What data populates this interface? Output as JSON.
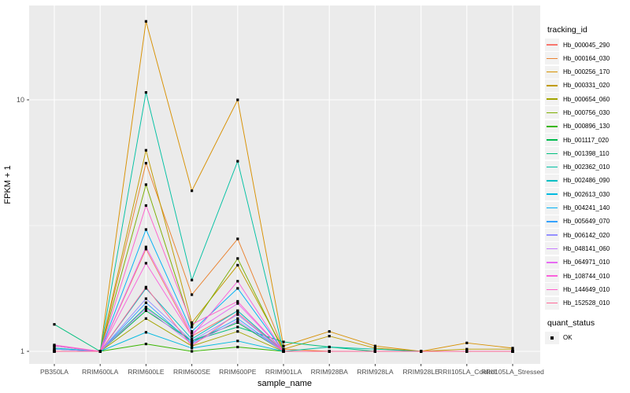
{
  "figure": {
    "panel_background": "#EBEBEB",
    "grid_color": "#FFFFFF",
    "axis_text_color": "#4D4D4D",
    "axis_title_color": "#000000",
    "tick_color": "#333333",
    "point_color": "#000000",
    "legend_key_background": "#F2F2F2"
  },
  "chart_data": {
    "type": "line",
    "title": "",
    "xlabel": "sample_name",
    "ylabel": "FPKM + 1",
    "y_scale": "log10",
    "y_ticks": [
      1,
      10
    ],
    "y_minor_ticks": [
      3.1623
    ],
    "ylim": [
      0.9,
      23.5
    ],
    "grid": true,
    "legend_position": "right",
    "legend_title": "tracking_id",
    "legend2_title": "quant_status",
    "legend2_items": [
      {
        "label": "OK",
        "shape": "black-square"
      }
    ],
    "point_shape": "square",
    "categories": [
      "PB350LA",
      "RRIM600LA",
      "RRIM600LE",
      "RRIM600SE",
      "RRIM600PE",
      "RRIM901LA",
      "RRIM928BA",
      "RRIM928LA",
      "RRIM928LE",
      "RRII105LA_Control",
      "RRII105LA_Stressed"
    ],
    "series": [
      {
        "name": "Hb_000045_290",
        "color": "#F8766D",
        "values": [
          1.0,
          1.0,
          2.55,
          1.15,
          1.45,
          1.0,
          1.0,
          1.0,
          1.0,
          1.0,
          1.0
        ]
      },
      {
        "name": "Hb_000164_030",
        "color": "#EA8331",
        "values": [
          1.0,
          1.0,
          5.6,
          1.68,
          2.8,
          1.02,
          1.0,
          1.0,
          1.0,
          1.0,
          1.0
        ]
      },
      {
        "name": "Hb_000256_170",
        "color": "#D89000",
        "values": [
          1.0,
          1.0,
          20.5,
          4.35,
          10.0,
          1.05,
          1.2,
          1.05,
          1.0,
          1.08,
          1.03
        ]
      },
      {
        "name": "Hb_000331_020",
        "color": "#C09B00",
        "values": [
          1.0,
          1.0,
          6.3,
          1.3,
          2.2,
          1.02,
          1.15,
          1.03,
          1.0,
          1.02,
          1.02
        ]
      },
      {
        "name": "Hb_000654_060",
        "color": "#A3A500",
        "values": [
          1.0,
          1.0,
          1.35,
          1.05,
          1.2,
          1.0,
          1.0,
          1.0,
          1.0,
          1.0,
          1.0
        ]
      },
      {
        "name": "Hb_000756_030",
        "color": "#7CAE00",
        "values": [
          1.0,
          1.0,
          4.6,
          1.25,
          2.34,
          1.0,
          1.0,
          1.0,
          1.0,
          1.0,
          1.0
        ]
      },
      {
        "name": "Hb_000896_130",
        "color": "#39B600",
        "values": [
          1.0,
          1.0,
          1.07,
          1.0,
          1.04,
          1.0,
          1.0,
          1.0,
          1.0,
          1.0,
          1.0
        ]
      },
      {
        "name": "Hb_001117_020",
        "color": "#00BB4E",
        "values": [
          1.05,
          1.0,
          1.45,
          1.1,
          1.3,
          1.0,
          1.0,
          1.0,
          1.0,
          1.0,
          1.0
        ]
      },
      {
        "name": "Hb_001398_110",
        "color": "#00BF7D",
        "values": [
          1.28,
          1.0,
          1.5,
          1.1,
          1.25,
          1.09,
          1.04,
          1.0,
          1.0,
          1.0,
          1.0
        ]
      },
      {
        "name": "Hb_002362_010",
        "color": "#00C1A3",
        "values": [
          1.02,
          1.0,
          10.7,
          1.92,
          5.7,
          1.0,
          1.04,
          1.02,
          1.0,
          1.0,
          1.0
        ]
      },
      {
        "name": "Hb_002486_090",
        "color": "#00BFC4",
        "values": [
          1.03,
          1.0,
          1.78,
          1.12,
          1.45,
          1.0,
          1.0,
          1.0,
          1.0,
          1.0,
          1.0
        ]
      },
      {
        "name": "Hb_002613_030",
        "color": "#00BAE0",
        "values": [
          1.02,
          1.0,
          1.19,
          1.03,
          1.1,
          1.0,
          1.0,
          1.0,
          1.0,
          1.0,
          1.0
        ]
      },
      {
        "name": "Hb_004241_140",
        "color": "#00B0F6",
        "values": [
          1.0,
          1.0,
          3.05,
          1.2,
          1.78,
          1.0,
          1.0,
          1.0,
          1.0,
          1.0,
          1.0
        ]
      },
      {
        "name": "Hb_005649_070",
        "color": "#35A2FF",
        "values": [
          1.05,
          1.0,
          1.56,
          1.08,
          1.35,
          1.0,
          1.0,
          1.0,
          1.0,
          1.0,
          1.0
        ]
      },
      {
        "name": "Hb_006142_020",
        "color": "#9590FF",
        "values": [
          1.02,
          1.0,
          1.62,
          1.1,
          1.4,
          1.0,
          1.0,
          1.0,
          1.0,
          1.0,
          1.0
        ]
      },
      {
        "name": "Hb_048141_060",
        "color": "#C77CFF",
        "values": [
          1.0,
          1.0,
          1.48,
          1.07,
          1.32,
          1.0,
          1.0,
          1.0,
          1.0,
          1.0,
          1.0
        ]
      },
      {
        "name": "Hb_064971_010",
        "color": "#E76BF3",
        "values": [
          1.0,
          1.0,
          2.6,
          1.18,
          1.55,
          1.0,
          1.0,
          1.0,
          1.0,
          1.0,
          1.0
        ]
      },
      {
        "name": "Hb_108744_010",
        "color": "#FA62DB",
        "values": [
          1.05,
          1.0,
          2.24,
          1.15,
          1.9,
          1.0,
          1.0,
          1.0,
          1.0,
          1.0,
          1.0
        ]
      },
      {
        "name": "Hb_144649_010",
        "color": "#FF61CC",
        "values": [
          1.06,
          1.0,
          3.8,
          1.28,
          1.58,
          1.0,
          1.0,
          1.0,
          1.0,
          1.0,
          1.0
        ]
      },
      {
        "name": "Hb_152528_010",
        "color": "#FF6A98",
        "values": [
          1.0,
          1.0,
          1.8,
          1.05,
          1.42,
          1.0,
          1.0,
          1.0,
          1.0,
          1.0,
          1.0
        ]
      }
    ]
  }
}
